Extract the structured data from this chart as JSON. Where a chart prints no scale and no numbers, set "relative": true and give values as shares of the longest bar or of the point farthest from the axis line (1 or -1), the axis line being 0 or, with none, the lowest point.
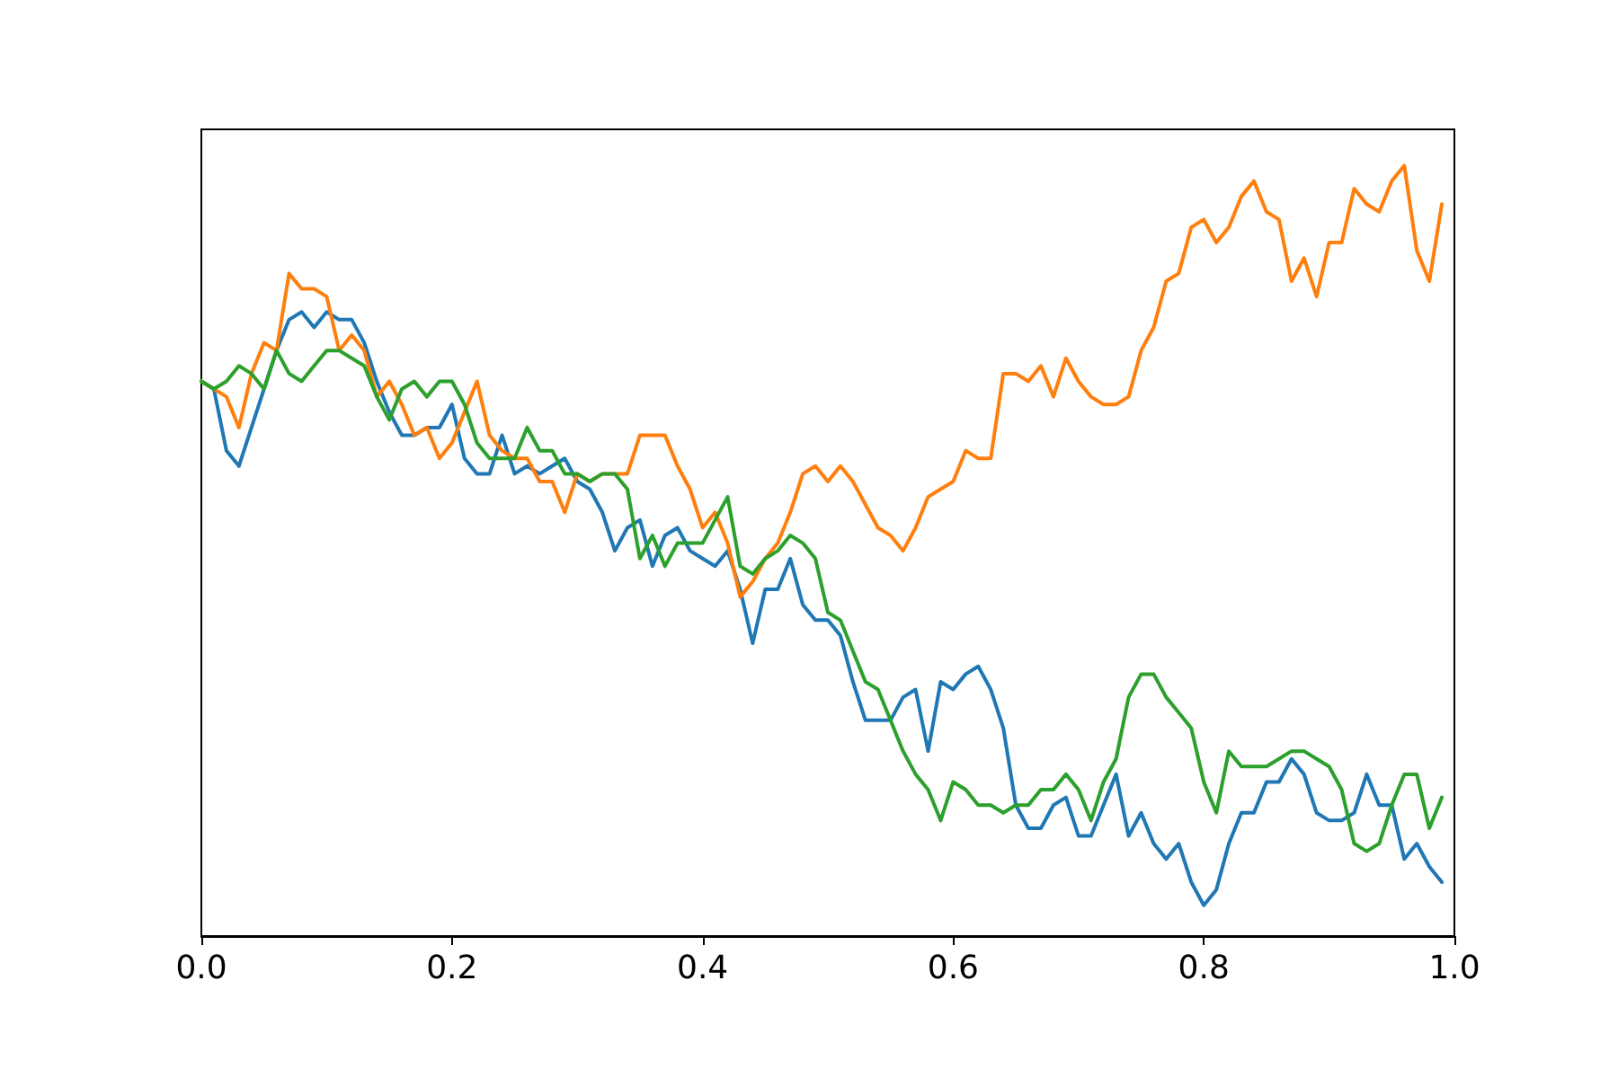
{
  "chart_data": {
    "type": "line",
    "relative": true,
    "grid": false,
    "tick_labels": "x",
    "x": [
      0,
      0.01,
      0.02,
      0.03,
      0.04,
      0.05,
      0.06,
      0.07,
      0.08,
      0.09,
      0.1,
      0.11,
      0.12,
      0.13,
      0.14,
      0.15,
      0.16,
      0.17,
      0.18,
      0.19,
      0.2,
      0.21,
      0.22,
      0.23,
      0.24,
      0.25,
      0.26,
      0.27,
      0.28,
      0.29,
      0.3,
      0.31,
      0.32,
      0.33,
      0.34,
      0.35,
      0.36,
      0.37,
      0.38,
      0.39,
      0.4,
      0.41,
      0.42,
      0.43,
      0.44,
      0.45,
      0.46,
      0.47,
      0.48,
      0.49,
      0.5,
      0.51,
      0.52,
      0.53,
      0.54,
      0.55,
      0.56,
      0.57,
      0.58,
      0.59,
      0.6,
      0.61,
      0.62,
      0.63,
      0.64,
      0.65,
      0.66,
      0.67,
      0.68,
      0.69,
      0.7,
      0.71,
      0.72,
      0.73,
      0.74,
      0.75,
      0.76,
      0.77,
      0.78,
      0.79,
      0.8,
      0.81,
      0.82,
      0.83,
      0.84,
      0.85,
      0.86,
      0.87,
      0.88,
      0.89,
      0.9,
      0.91,
      0.92,
      0.93,
      0.94,
      0.95,
      0.96,
      0.97,
      0.98,
      0.99
    ],
    "xlim": [
      0,
      1
    ],
    "xticks": [
      {
        "value": 0,
        "label": "0.0"
      },
      {
        "value": 0.2,
        "label": "0.2"
      },
      {
        "value": 0.4,
        "label": "0.4"
      },
      {
        "value": 0.6,
        "label": "0.6"
      },
      {
        "value": 0.8,
        "label": "0.8"
      },
      {
        "value": 1,
        "label": "1.0"
      }
    ],
    "series": [
      {
        "color": "#1f77b4",
        "values": [
          0.72,
          0.71,
          0.63,
          0.61,
          0.66,
          0.71,
          0.76,
          0.8,
          0.81,
          0.79,
          0.81,
          0.8,
          0.8,
          0.77,
          0.72,
          0.68,
          0.65,
          0.65,
          0.66,
          0.66,
          0.69,
          0.62,
          0.6,
          0.6,
          0.65,
          0.6,
          0.61,
          0.6,
          0.61,
          0.62,
          0.59,
          0.58,
          0.55,
          0.5,
          0.53,
          0.54,
          0.48,
          0.52,
          0.53,
          0.5,
          0.49,
          0.48,
          0.5,
          0.45,
          0.38,
          0.45,
          0.45,
          0.49,
          0.43,
          0.41,
          0.41,
          0.39,
          0.33,
          0.28,
          0.28,
          0.28,
          0.31,
          0.32,
          0.24,
          0.33,
          0.32,
          0.34,
          0.35,
          0.32,
          0.27,
          0.17,
          0.14,
          0.14,
          0.17,
          0.18,
          0.13,
          0.13,
          0.17,
          0.21,
          0.13,
          0.16,
          0.12,
          0.1,
          0.12,
          0.07,
          0.04,
          0.06,
          0.12,
          0.16,
          0.16,
          0.2,
          0.2,
          0.23,
          0.21,
          0.16,
          0.15,
          0.15,
          0.16,
          0.21,
          0.17,
          0.17,
          0.1,
          0.12,
          0.09,
          0.07
        ]
      },
      {
        "color": "#ff7f0e",
        "values": [
          0.72,
          0.71,
          0.7,
          0.66,
          0.73,
          0.77,
          0.76,
          0.86,
          0.84,
          0.84,
          0.83,
          0.76,
          0.78,
          0.76,
          0.7,
          0.72,
          0.69,
          0.65,
          0.66,
          0.62,
          0.64,
          0.68,
          0.72,
          0.65,
          0.63,
          0.62,
          0.62,
          0.59,
          0.59,
          0.55,
          0.6,
          0.59,
          0.6,
          0.6,
          0.6,
          0.65,
          0.65,
          0.65,
          0.61,
          0.58,
          0.53,
          0.55,
          0.51,
          0.44,
          0.46,
          0.49,
          0.51,
          0.55,
          0.6,
          0.61,
          0.59,
          0.61,
          0.59,
          0.56,
          0.53,
          0.52,
          0.5,
          0.53,
          0.57,
          0.58,
          0.59,
          0.63,
          0.62,
          0.62,
          0.73,
          0.73,
          0.72,
          0.74,
          0.7,
          0.75,
          0.72,
          0.7,
          0.69,
          0.69,
          0.7,
          0.76,
          0.79,
          0.85,
          0.86,
          0.92,
          0.93,
          0.9,
          0.92,
          0.96,
          0.98,
          0.94,
          0.93,
          0.85,
          0.88,
          0.83,
          0.9,
          0.9,
          0.97,
          0.95,
          0.94,
          0.98,
          1,
          0.89,
          0.85,
          0.95
        ]
      },
      {
        "color": "#2ca02c",
        "values": [
          0.72,
          0.71,
          0.72,
          0.74,
          0.73,
          0.71,
          0.76,
          0.73,
          0.72,
          0.74,
          0.76,
          0.76,
          0.75,
          0.74,
          0.7,
          0.67,
          0.71,
          0.72,
          0.7,
          0.72,
          0.72,
          0.69,
          0.64,
          0.62,
          0.62,
          0.62,
          0.66,
          0.63,
          0.63,
          0.6,
          0.6,
          0.59,
          0.6,
          0.6,
          0.58,
          0.49,
          0.52,
          0.48,
          0.51,
          0.51,
          0.51,
          0.54,
          0.57,
          0.48,
          0.47,
          0.49,
          0.5,
          0.52,
          0.51,
          0.49,
          0.42,
          0.41,
          0.37,
          0.33,
          0.32,
          0.28,
          0.24,
          0.21,
          0.19,
          0.15,
          0.2,
          0.19,
          0.17,
          0.17,
          0.16,
          0.17,
          0.17,
          0.19,
          0.19,
          0.21,
          0.19,
          0.15,
          0.2,
          0.23,
          0.31,
          0.34,
          0.34,
          0.31,
          0.29,
          0.27,
          0.2,
          0.16,
          0.24,
          0.22,
          0.22,
          0.22,
          0.23,
          0.24,
          0.24,
          0.23,
          0.22,
          0.19,
          0.12,
          0.11,
          0.12,
          0.17,
          0.21,
          0.21,
          0.14,
          0.18
        ]
      }
    ]
  }
}
